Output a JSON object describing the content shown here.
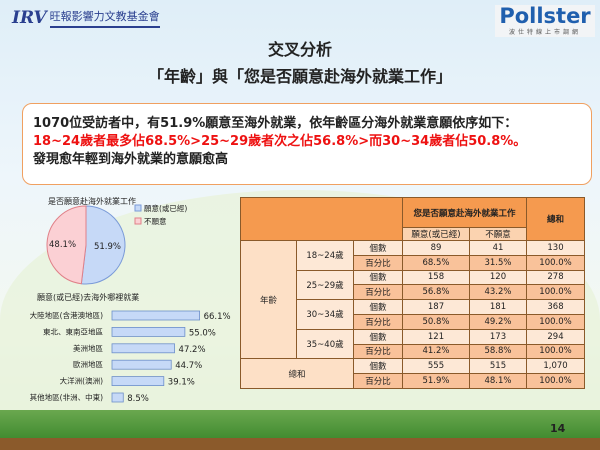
{
  "header": {
    "org_logo_mark": "IRV",
    "org_logo_text": "旺報影響力文教基金會",
    "pollster_logo": "Pollster",
    "pollster_sub": "波仕特線上市調網"
  },
  "title": {
    "line1": "交叉分析",
    "line2": "「年齡」與「您是否願意赴海外就業工作」"
  },
  "summary": {
    "line1": "1070位受訪者中，有51.9%願意至海外就業，依年齡區分海外就業意願依序如下：",
    "line2": "18~24歲者最多佔68.5%>25~29歲者次之佔56.8%>而30~34歲者佔50.8%。",
    "line3": "發現愈年輕到海外就業的意願愈高",
    "highlight_color": "#ee1111"
  },
  "chart_data": [
    {
      "type": "pie",
      "title": "是否願意赴海外就業工作",
      "legend_position": "right",
      "series": [
        {
          "name": "願意(或已經)",
          "value": 51.9,
          "label": "51.9%",
          "color": "#c6d9f7"
        },
        {
          "name": "不願意",
          "value": 48.1,
          "label": "48.1%",
          "color": "#fbd0d4"
        }
      ]
    },
    {
      "type": "bar",
      "orientation": "horizontal",
      "title": "願意(或已經)去海外哪裡就業",
      "categories": [
        "大陸地區(含港澳地區)",
        "東北、東南亞地區",
        "美洲地區",
        "歐洲地區",
        "大洋洲(澳洲)",
        "其他地區(非洲、中東)"
      ],
      "values": [
        66.1,
        55.0,
        47.2,
        44.7,
        39.1,
        8.5
      ],
      "labels": [
        "66.1%",
        "55.0%",
        "47.2%",
        "44.7%",
        "39.1%",
        "8.5%"
      ],
      "xlim": [
        0,
        80
      ],
      "xticks": [
        "0%",
        "20%",
        "40%",
        "60%",
        "80%"
      ],
      "color": "#c6d9f7"
    }
  ],
  "table": {
    "group_header": "您是否願意赴海外就業工作",
    "total_header": "總和",
    "sub_headers": [
      "願意(或已經)",
      "不願意"
    ],
    "row_group": "年齡",
    "total_row": "總和",
    "rows": [
      {
        "age": "18~24歲",
        "count": [
          "89",
          "41",
          "130"
        ],
        "pct": [
          "68.5%",
          "31.5%",
          "100.0%"
        ]
      },
      {
        "age": "25~29歲",
        "count": [
          "158",
          "120",
          "278"
        ],
        "pct": [
          "56.8%",
          "43.2%",
          "100.0%"
        ]
      },
      {
        "age": "30~34歲",
        "count": [
          "187",
          "181",
          "368"
        ],
        "pct": [
          "50.8%",
          "49.2%",
          "100.0%"
        ]
      },
      {
        "age": "35~40歲",
        "count": [
          "121",
          "173",
          "294"
        ],
        "pct": [
          "41.2%",
          "58.8%",
          "100.0%"
        ]
      }
    ],
    "total": {
      "count": [
        "555",
        "515",
        "1,070"
      ],
      "pct": [
        "51.9%",
        "48.1%",
        "100.0%"
      ]
    },
    "count_label": "個數",
    "pct_label": "百分比"
  },
  "page_number": "14"
}
